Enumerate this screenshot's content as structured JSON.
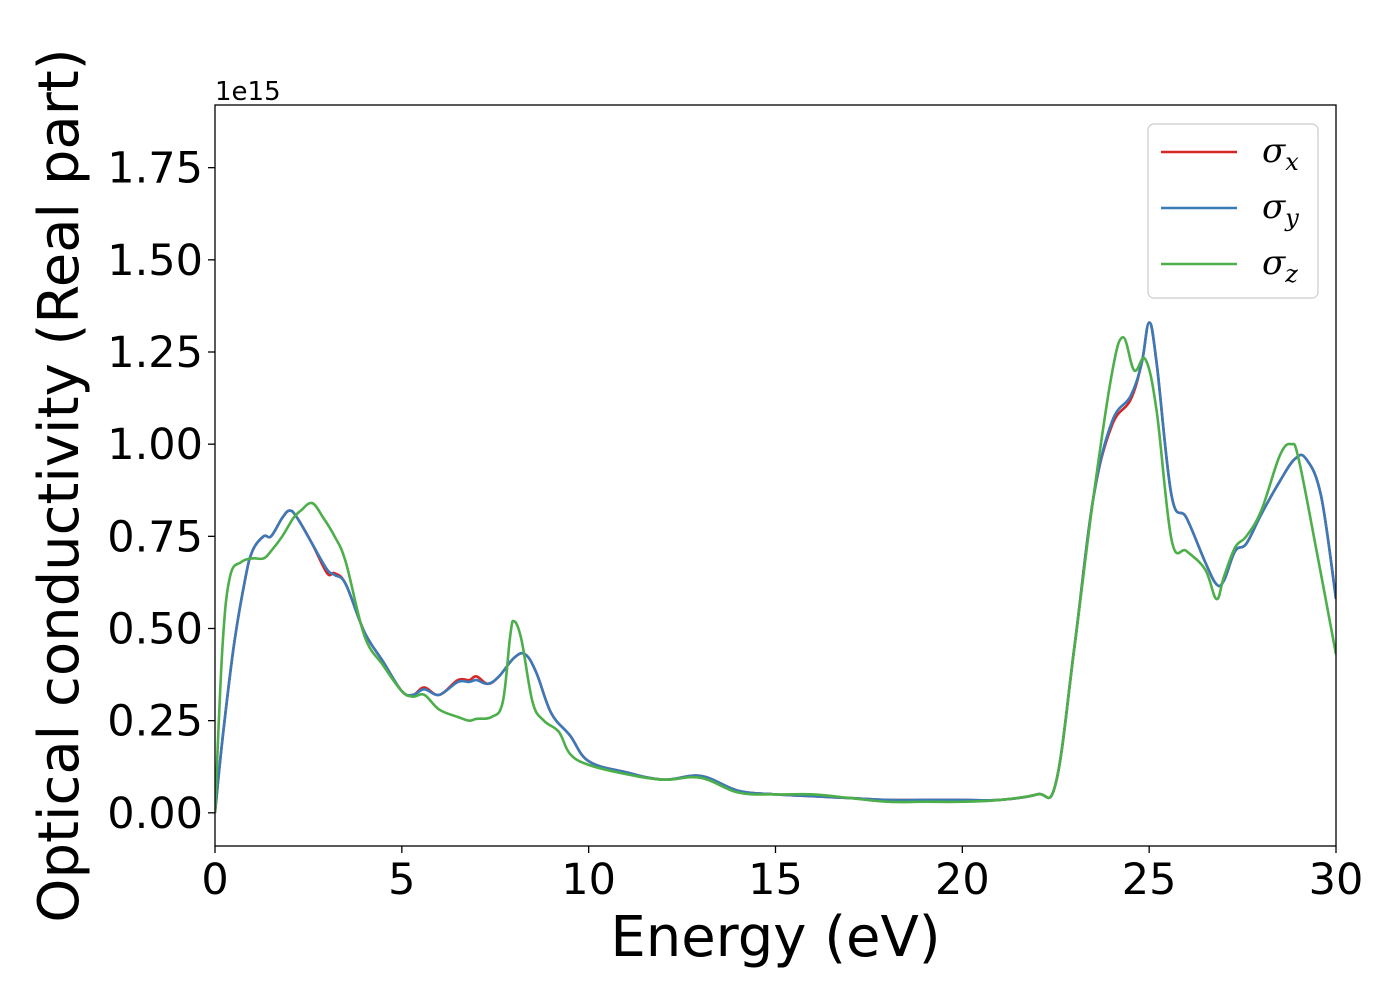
{
  "chart_data": {
    "type": "line",
    "title": "",
    "xlabel": "Energy (eV)",
    "ylabel": "Optical conductivity (Real part)",
    "y_offset_label": "1e15",
    "xlim": [
      0,
      30
    ],
    "ylim": [
      -0.09,
      1.92
    ],
    "xticks": [
      0,
      5,
      10,
      15,
      20,
      25,
      30
    ],
    "xtick_labels": [
      "0",
      "5",
      "10",
      "15",
      "20",
      "25",
      "30"
    ],
    "yticks": [
      0.0,
      0.25,
      0.5,
      0.75,
      1.0,
      1.25,
      1.5,
      1.75
    ],
    "ytick_labels": [
      "0.00",
      "0.25",
      "0.50",
      "0.75",
      "1.00",
      "1.25",
      "1.50",
      "1.75"
    ],
    "grid": false,
    "legend_position": "top-right",
    "series": [
      {
        "name": "σx",
        "symbol": "σ",
        "sub": "x",
        "color": "#d62728",
        "x": [
          0,
          0.2,
          0.5,
          0.8,
          1.0,
          1.3,
          1.5,
          1.8,
          2.0,
          2.2,
          2.6,
          3.0,
          3.2,
          3.5,
          4.0,
          4.5,
          5.0,
          5.3,
          5.6,
          6.0,
          6.5,
          6.8,
          7.0,
          7.3,
          7.6,
          8.0,
          8.3,
          8.6,
          9.0,
          9.5,
          10.0,
          11.0,
          12.0,
          13.0,
          14.0,
          15.0,
          16.0,
          17.0,
          18.0,
          19.0,
          20.0,
          21.0,
          22.0,
          22.5,
          23.0,
          23.5,
          24.0,
          24.5,
          24.8,
          25.0,
          25.2,
          25.6,
          26.0,
          26.5,
          26.8,
          27.0,
          27.3,
          27.6,
          28.0,
          28.5,
          28.9,
          29.2,
          29.6,
          30.0
        ],
        "y": [
          0.0,
          0.2,
          0.45,
          0.63,
          0.71,
          0.75,
          0.75,
          0.8,
          0.82,
          0.8,
          0.73,
          0.65,
          0.65,
          0.62,
          0.49,
          0.41,
          0.33,
          0.32,
          0.34,
          0.32,
          0.36,
          0.36,
          0.37,
          0.35,
          0.37,
          0.42,
          0.43,
          0.38,
          0.27,
          0.21,
          0.14,
          0.11,
          0.09,
          0.1,
          0.06,
          0.05,
          0.045,
          0.04,
          0.035,
          0.035,
          0.035,
          0.035,
          0.05,
          0.08,
          0.45,
          0.85,
          1.05,
          1.12,
          1.22,
          1.33,
          1.22,
          0.86,
          0.8,
          0.68,
          0.62,
          0.63,
          0.71,
          0.73,
          0.81,
          0.9,
          0.96,
          0.96,
          0.86,
          0.58
        ]
      },
      {
        "name": "σy",
        "symbol": "σ",
        "sub": "y",
        "color": "#3a7ab8",
        "x": [
          0,
          0.2,
          0.5,
          0.8,
          1.0,
          1.3,
          1.5,
          1.8,
          2.0,
          2.2,
          2.6,
          3.0,
          3.2,
          3.5,
          4.0,
          4.5,
          5.0,
          5.3,
          5.6,
          6.0,
          6.5,
          6.8,
          7.0,
          7.3,
          7.6,
          8.0,
          8.3,
          8.6,
          9.0,
          9.5,
          10.0,
          11.0,
          12.0,
          13.0,
          14.0,
          15.0,
          16.0,
          17.0,
          18.0,
          19.0,
          20.0,
          21.0,
          22.0,
          22.5,
          23.0,
          23.5,
          24.0,
          24.5,
          24.8,
          25.0,
          25.2,
          25.6,
          26.0,
          26.5,
          26.8,
          27.0,
          27.3,
          27.6,
          28.0,
          28.5,
          28.9,
          29.2,
          29.6,
          30.0
        ],
        "y": [
          0.0,
          0.2,
          0.45,
          0.63,
          0.71,
          0.75,
          0.75,
          0.8,
          0.82,
          0.8,
          0.73,
          0.66,
          0.645,
          0.62,
          0.49,
          0.41,
          0.33,
          0.32,
          0.335,
          0.32,
          0.355,
          0.355,
          0.36,
          0.35,
          0.37,
          0.42,
          0.43,
          0.38,
          0.27,
          0.21,
          0.14,
          0.11,
          0.09,
          0.1,
          0.06,
          0.05,
          0.045,
          0.04,
          0.035,
          0.035,
          0.035,
          0.035,
          0.05,
          0.08,
          0.45,
          0.85,
          1.06,
          1.13,
          1.22,
          1.33,
          1.22,
          0.86,
          0.8,
          0.68,
          0.62,
          0.63,
          0.71,
          0.73,
          0.81,
          0.9,
          0.96,
          0.96,
          0.86,
          0.58
        ]
      },
      {
        "name": "σz",
        "symbol": "σ",
        "sub": "z",
        "color": "#4daf4a",
        "x": [
          0,
          0.2,
          0.4,
          0.7,
          1.0,
          1.3,
          1.5,
          1.8,
          2.1,
          2.3,
          2.6,
          2.9,
          3.2,
          3.5,
          4.0,
          4.5,
          5.0,
          5.3,
          5.6,
          6.0,
          6.5,
          6.8,
          7.0,
          7.4,
          7.7,
          7.9,
          8.0,
          8.2,
          8.5,
          8.8,
          9.2,
          9.5,
          10.0,
          11.0,
          12.0,
          13.0,
          14.0,
          15.0,
          16.0,
          17.0,
          18.0,
          19.0,
          20.0,
          21.0,
          22.0,
          22.5,
          23.0,
          23.5,
          24.0,
          24.3,
          24.6,
          24.9,
          25.2,
          25.6,
          26.0,
          26.5,
          26.8,
          27.0,
          27.3,
          27.6,
          28.0,
          28.5,
          28.8,
          29.0,
          29.5,
          30.0
        ],
        "y": [
          0.0,
          0.45,
          0.64,
          0.68,
          0.69,
          0.69,
          0.71,
          0.75,
          0.8,
          0.82,
          0.84,
          0.8,
          0.75,
          0.68,
          0.48,
          0.4,
          0.33,
          0.315,
          0.32,
          0.28,
          0.26,
          0.25,
          0.255,
          0.26,
          0.3,
          0.48,
          0.52,
          0.47,
          0.3,
          0.25,
          0.22,
          0.16,
          0.13,
          0.105,
          0.09,
          0.095,
          0.055,
          0.05,
          0.05,
          0.04,
          0.03,
          0.03,
          0.03,
          0.035,
          0.05,
          0.08,
          0.45,
          0.85,
          1.19,
          1.29,
          1.2,
          1.23,
          1.09,
          0.74,
          0.71,
          0.66,
          0.58,
          0.64,
          0.72,
          0.75,
          0.82,
          0.97,
          1.0,
          0.96,
          0.7,
          0.43
        ]
      }
    ]
  }
}
